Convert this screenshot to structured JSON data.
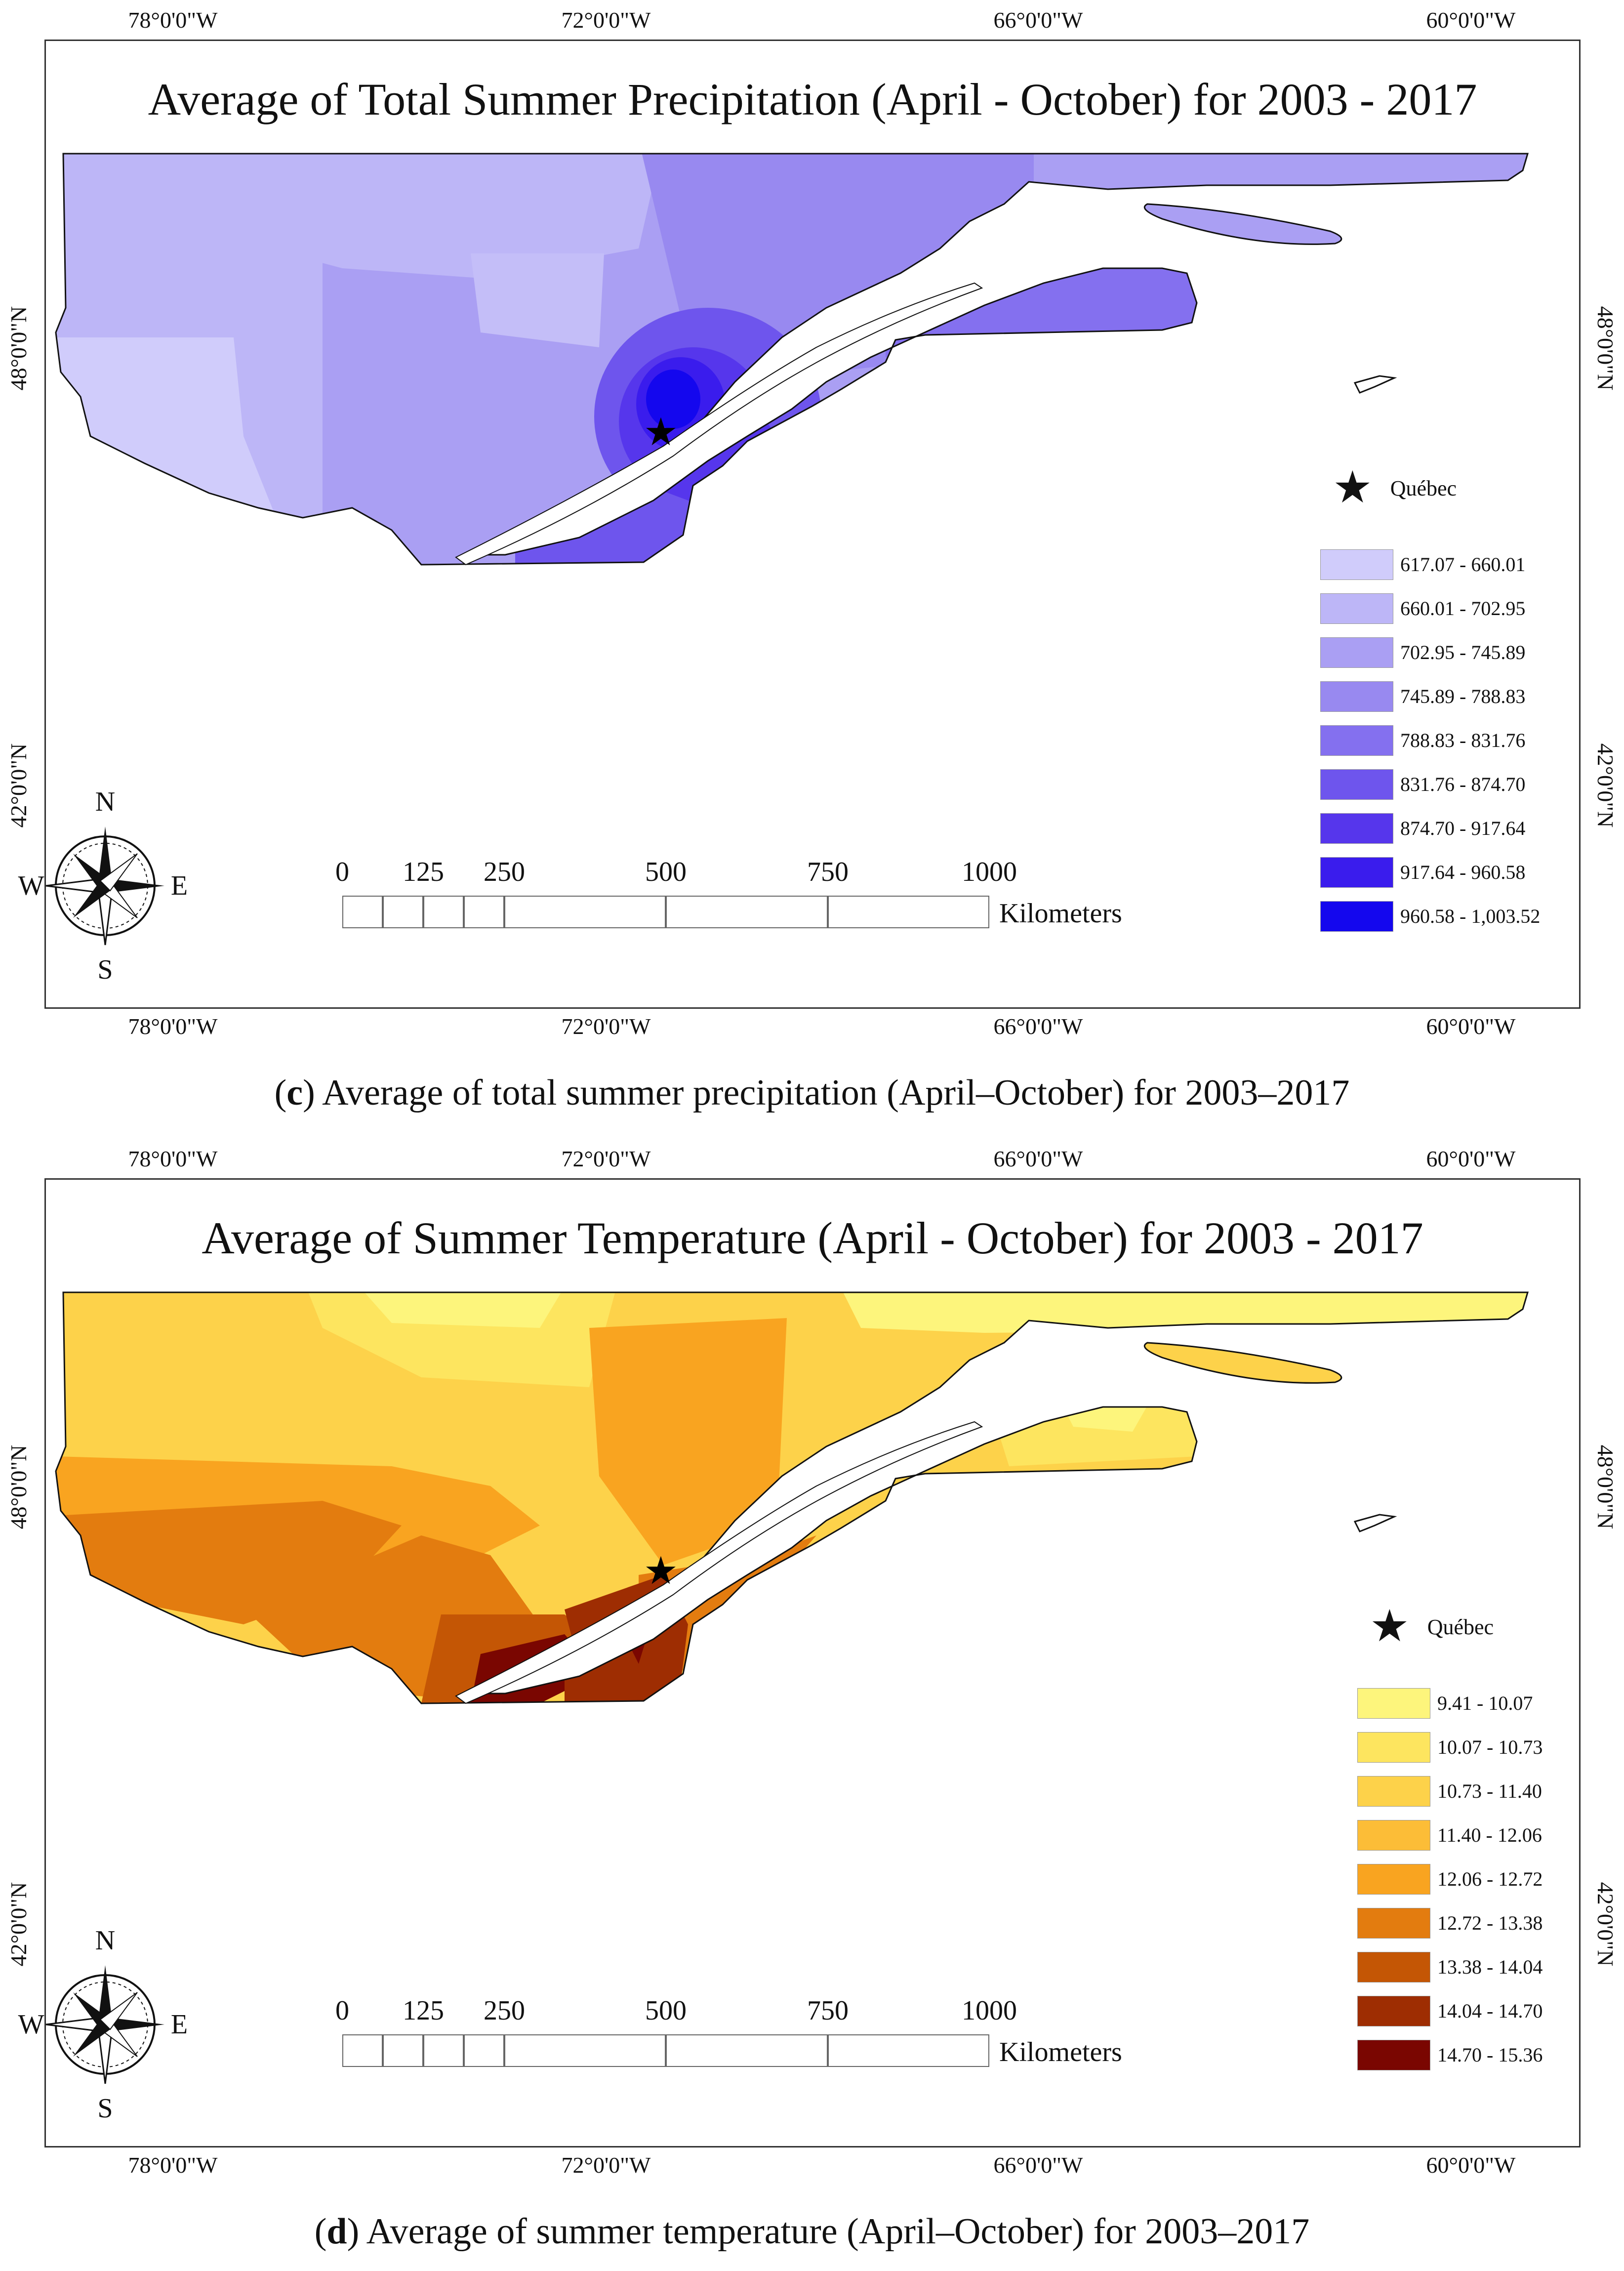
{
  "panels": [
    {
      "coords_top": [
        "78°0'0\"W",
        "72°0'0\"W",
        "66°0'0\"W",
        "60°0'0\"W"
      ],
      "coords_bottom": [
        "78°0'0\"W",
        "72°0'0\"W",
        "66°0'0\"W",
        "60°0'0\"W"
      ],
      "coords_side": [
        "48°0'0\"N",
        "42°0'0\"N"
      ],
      "title": "Average of Total Summer Precipitation (April - October) for 2003 - 2017",
      "city": "Québec",
      "legend": [
        {
          "label": "617.07 - 660.01",
          "color": "#d0ccfb"
        },
        {
          "label": "660.01 - 702.95",
          "color": "#bdb6f7"
        },
        {
          "label": "702.95 - 745.89",
          "color": "#aa9ff3"
        },
        {
          "label": "745.89 - 788.83",
          "color": "#9889f0"
        },
        {
          "label": "788.83 - 831.76",
          "color": "#8470ef"
        },
        {
          "label": "831.76 - 874.70",
          "color": "#6e55ed"
        },
        {
          "label": "874.70 - 917.64",
          "color": "#5636ec"
        },
        {
          "label": "917.64 - 960.58",
          "color": "#3a1ced"
        },
        {
          "label": "960.58 - 1,003.52",
          "color": "#1407ee"
        }
      ],
      "scale": {
        "ticks": [
          "0",
          "125",
          "250",
          "500",
          "750",
          "1000"
        ],
        "unit": "Kilometers"
      },
      "compass": {
        "n": "N",
        "s": "S",
        "e": "E",
        "w": "W"
      },
      "caption_letter": "c",
      "caption_text": "Average of total summer precipitation (April–October) for 2003–2017"
    },
    {
      "coords_top": [
        "78°0'0\"W",
        "72°0'0\"W",
        "66°0'0\"W",
        "60°0'0\"W"
      ],
      "coords_bottom": [
        "78°0'0\"W",
        "72°0'0\"W",
        "66°0'0\"W",
        "60°0'0\"W"
      ],
      "coords_side": [
        "48°0'0\"N",
        "42°0'0\"N"
      ],
      "title": "Average of Summer Temperature (April - October) for 2003 - 2017",
      "city": "Québec",
      "legend": [
        {
          "label": "9.41 - 10.07",
          "color": "#fdf57c"
        },
        {
          "label": "10.07 - 10.73",
          "color": "#fde55f"
        },
        {
          "label": "10.73 - 11.40",
          "color": "#fdd24a"
        },
        {
          "label": "11.40 - 12.06",
          "color": "#fcbd37"
        },
        {
          "label": "12.06 - 12.72",
          "color": "#f9a420"
        },
        {
          "label": "12.72 - 13.38",
          "color": "#e37c0f"
        },
        {
          "label": "13.38 - 14.04",
          "color": "#c45605"
        },
        {
          "label": "14.04 - 14.70",
          "color": "#9e2d02"
        },
        {
          "label": "14.70 - 15.36",
          "color": "#7a0601"
        }
      ],
      "scale": {
        "ticks": [
          "0",
          "125",
          "250",
          "500",
          "750",
          "1000"
        ],
        "unit": "Kilometers"
      },
      "compass": {
        "n": "N",
        "s": "S",
        "e": "E",
        "w": "W"
      },
      "caption_letter": "d",
      "caption_text": "Average of summer temperature (April–October) for 2003–2017"
    }
  ]
}
